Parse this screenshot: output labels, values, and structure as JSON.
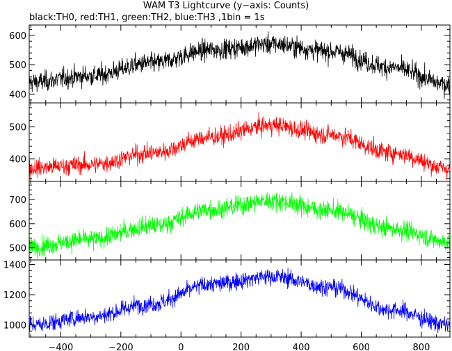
{
  "title": "WAM T3 Lightcurve (y−axis: Counts)",
  "subtitle": "black:TH0, red:TH1, green:TH2, blue:TH3 ,1bin = 1s",
  "chart_data": {
    "type": "line",
    "title": "WAM T3 Lightcurve (y−axis: Counts)",
    "xlabel": "",
    "ylabel": "Counts",
    "xlim": [
      -505,
      895
    ],
    "xticks": [
      -400,
      -200,
      0,
      200,
      400,
      600,
      800
    ],
    "xtick_labels": [
      "−400",
      "−200",
      "0",
      "200",
      "400",
      "600",
      "800"
    ],
    "bin_seconds": 1,
    "grid": false,
    "panels": [
      {
        "name": "TH0",
        "color": "#000000",
        "ylim": [
          370,
          635
        ],
        "yticks": [
          400,
          500,
          600
        ],
        "profile_x": [
          -505,
          -300,
          -100,
          100,
          300,
          500,
          700,
          895
        ],
        "profile_y": [
          440,
          462,
          505,
          550,
          570,
          545,
          490,
          432
        ],
        "noise_sigma": 24
      },
      {
        "name": "TH1",
        "color": "#ff0000",
        "ylim": [
          330,
          575
        ],
        "yticks": [
          400,
          500
        ],
        "profile_x": [
          -505,
          -300,
          -100,
          100,
          300,
          500,
          700,
          895
        ],
        "profile_y": [
          372,
          382,
          418,
          468,
          505,
          475,
          420,
          370
        ],
        "noise_sigma": 20
      },
      {
        "name": "TH2",
        "color": "#00ff00",
        "ylim": [
          450,
          775
        ],
        "yticks": [
          500,
          600,
          700
        ],
        "profile_x": [
          -505,
          -300,
          -100,
          100,
          300,
          500,
          700,
          895
        ],
        "profile_y": [
          505,
          535,
          590,
          660,
          695,
          655,
          580,
          525
        ],
        "noise_sigma": 28
      },
      {
        "name": "TH3",
        "color": "#0000ff",
        "ylim": [
          920,
          1430
        ],
        "yticks": [
          1000,
          1200,
          1400
        ],
        "profile_x": [
          -505,
          -300,
          -100,
          100,
          300,
          500,
          700,
          895
        ],
        "profile_y": [
          1000,
          1055,
          1140,
          1270,
          1320,
          1250,
          1100,
          1000
        ],
        "noise_sigma": 40
      }
    ]
  }
}
